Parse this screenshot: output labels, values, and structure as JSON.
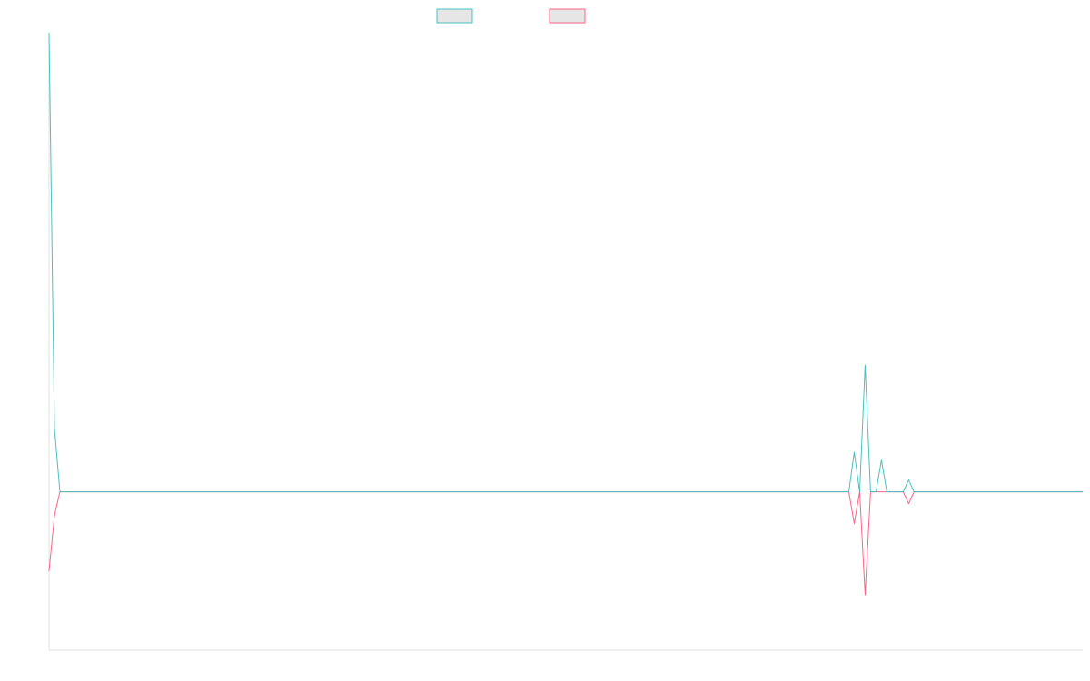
{
  "chart_data": {
    "type": "line",
    "title": "",
    "xlabel": "",
    "ylabel": "",
    "legend": {
      "placement": "top-center"
    },
    "grid": false,
    "x_range": [
      0,
      190
    ],
    "y_range": [
      -2.0,
      5.8
    ],
    "x": [
      0,
      1,
      2,
      147,
      148,
      149,
      150,
      151,
      152,
      153,
      154,
      155,
      157,
      158,
      159,
      190
    ],
    "series": [
      {
        "color": "#4bc0c0",
        "values": [
          5.8,
          0.8,
          0.0,
          0.0,
          0.5,
          0.0,
          1.6,
          0.0,
          0.0,
          0.4,
          0.0,
          0.0,
          0.0,
          0.15,
          0.0,
          0.0
        ]
      },
      {
        "color": "#ff6384",
        "values": [
          -1.0,
          -0.3,
          0.0,
          0.0,
          -0.4,
          0.0,
          -1.3,
          0.0,
          0.0,
          0.0,
          0.0,
          0.0,
          0.0,
          -0.15,
          0.0,
          0.0
        ]
      }
    ]
  }
}
